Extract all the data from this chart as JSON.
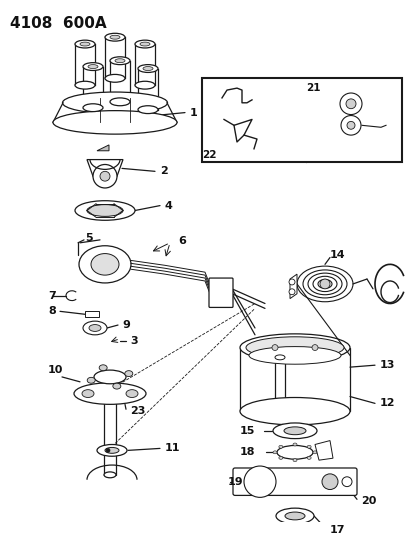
{
  "title": "4108  600A",
  "bg_color": "#ffffff",
  "line_color": "#1a1a1a",
  "text_color": "#111111",
  "fig_width": 4.14,
  "fig_height": 5.33,
  "dpi": 100
}
